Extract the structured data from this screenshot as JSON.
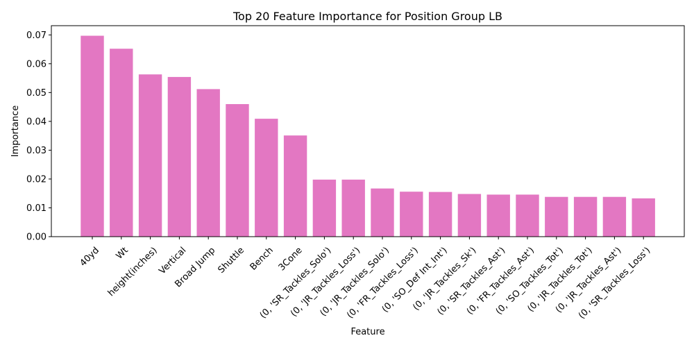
{
  "chart_data": {
    "type": "bar",
    "title": "Top 20 Feature Importance for Position Group LB",
    "xlabel": "Feature",
    "ylabel": "Importance",
    "ylim": [
      0,
      0.0732
    ],
    "yticks": [
      "0.00",
      "0.01",
      "0.02",
      "0.03",
      "0.04",
      "0.05",
      "0.06",
      "0.07"
    ],
    "grid": false,
    "bar_color": "#e377c2",
    "categories": [
      "40yd",
      "Wt",
      "height(inches)",
      "Vertical",
      "Broad Jump",
      "Shuttle",
      "Bench",
      "3Cone",
      "(0, 'SR_Tackles_Solo')",
      "(0, 'JR_Tackles_Loss')",
      "(0, 'JR_Tackles_Solo')",
      "(0, 'FR_Tackles_Loss')",
      "(0, 'SO_Def Int_Int')",
      "(0, 'JR_Tackles_Sk')",
      "(0, 'SR_Tackles_Ast')",
      "(0, 'FR_Tackles_Ast')",
      "(0, 'SO_Tackles_Tot')",
      "(0, 'JR_Tackles_Tot')",
      "(0, 'JR_Tackles_Ast')",
      "(0, 'SR_Tackles_Loss')"
    ],
    "values": [
      0.0697,
      0.0652,
      0.0563,
      0.0554,
      0.0512,
      0.046,
      0.0409,
      0.0351,
      0.0198,
      0.0198,
      0.0167,
      0.0156,
      0.0155,
      0.0148,
      0.0146,
      0.0146,
      0.0138,
      0.0138,
      0.0138,
      0.0133
    ]
  }
}
